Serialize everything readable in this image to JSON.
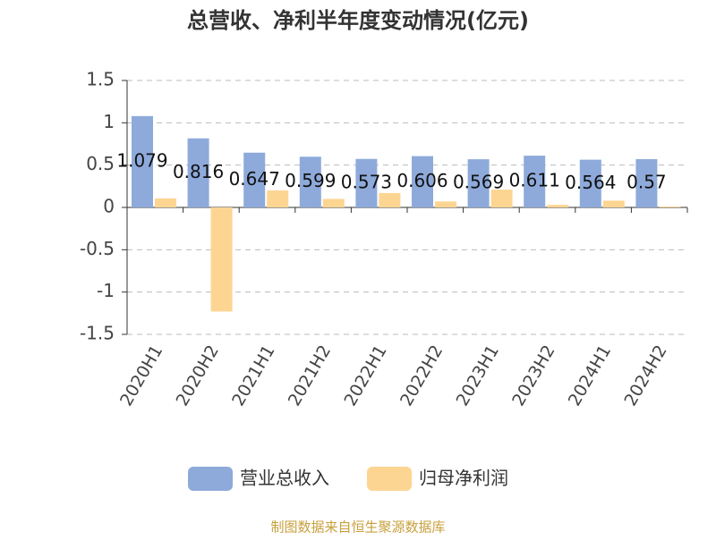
{
  "chart_data": {
    "type": "bar",
    "title": "总营收、净利半年度变动情况(亿元)",
    "categories": [
      "2020H1",
      "2020H2",
      "2021H1",
      "2021H2",
      "2022H1",
      "2022H2",
      "2023H1",
      "2023H2",
      "2024H1",
      "2024H2"
    ],
    "series": [
      {
        "name": "营业总收入",
        "color": "#8eaadb",
        "values": [
          1.079,
          0.816,
          0.647,
          0.599,
          0.573,
          0.606,
          0.569,
          0.611,
          0.564,
          0.57
        ],
        "show_labels": true
      },
      {
        "name": "归母净利润",
        "color": "#fdd592",
        "values": [
          0.106,
          -1.23,
          0.2,
          0.1,
          0.17,
          0.07,
          0.21,
          0.03,
          0.08,
          0.01
        ],
        "show_labels": false
      }
    ],
    "ylim": [
      -1.5,
      1.5
    ],
    "yticks": [
      -1.5,
      -1,
      -0.5,
      0,
      0.5,
      1,
      1.5
    ],
    "grid": true,
    "legend": "bottom",
    "source": "制图数据来自恒生聚源数据库"
  }
}
